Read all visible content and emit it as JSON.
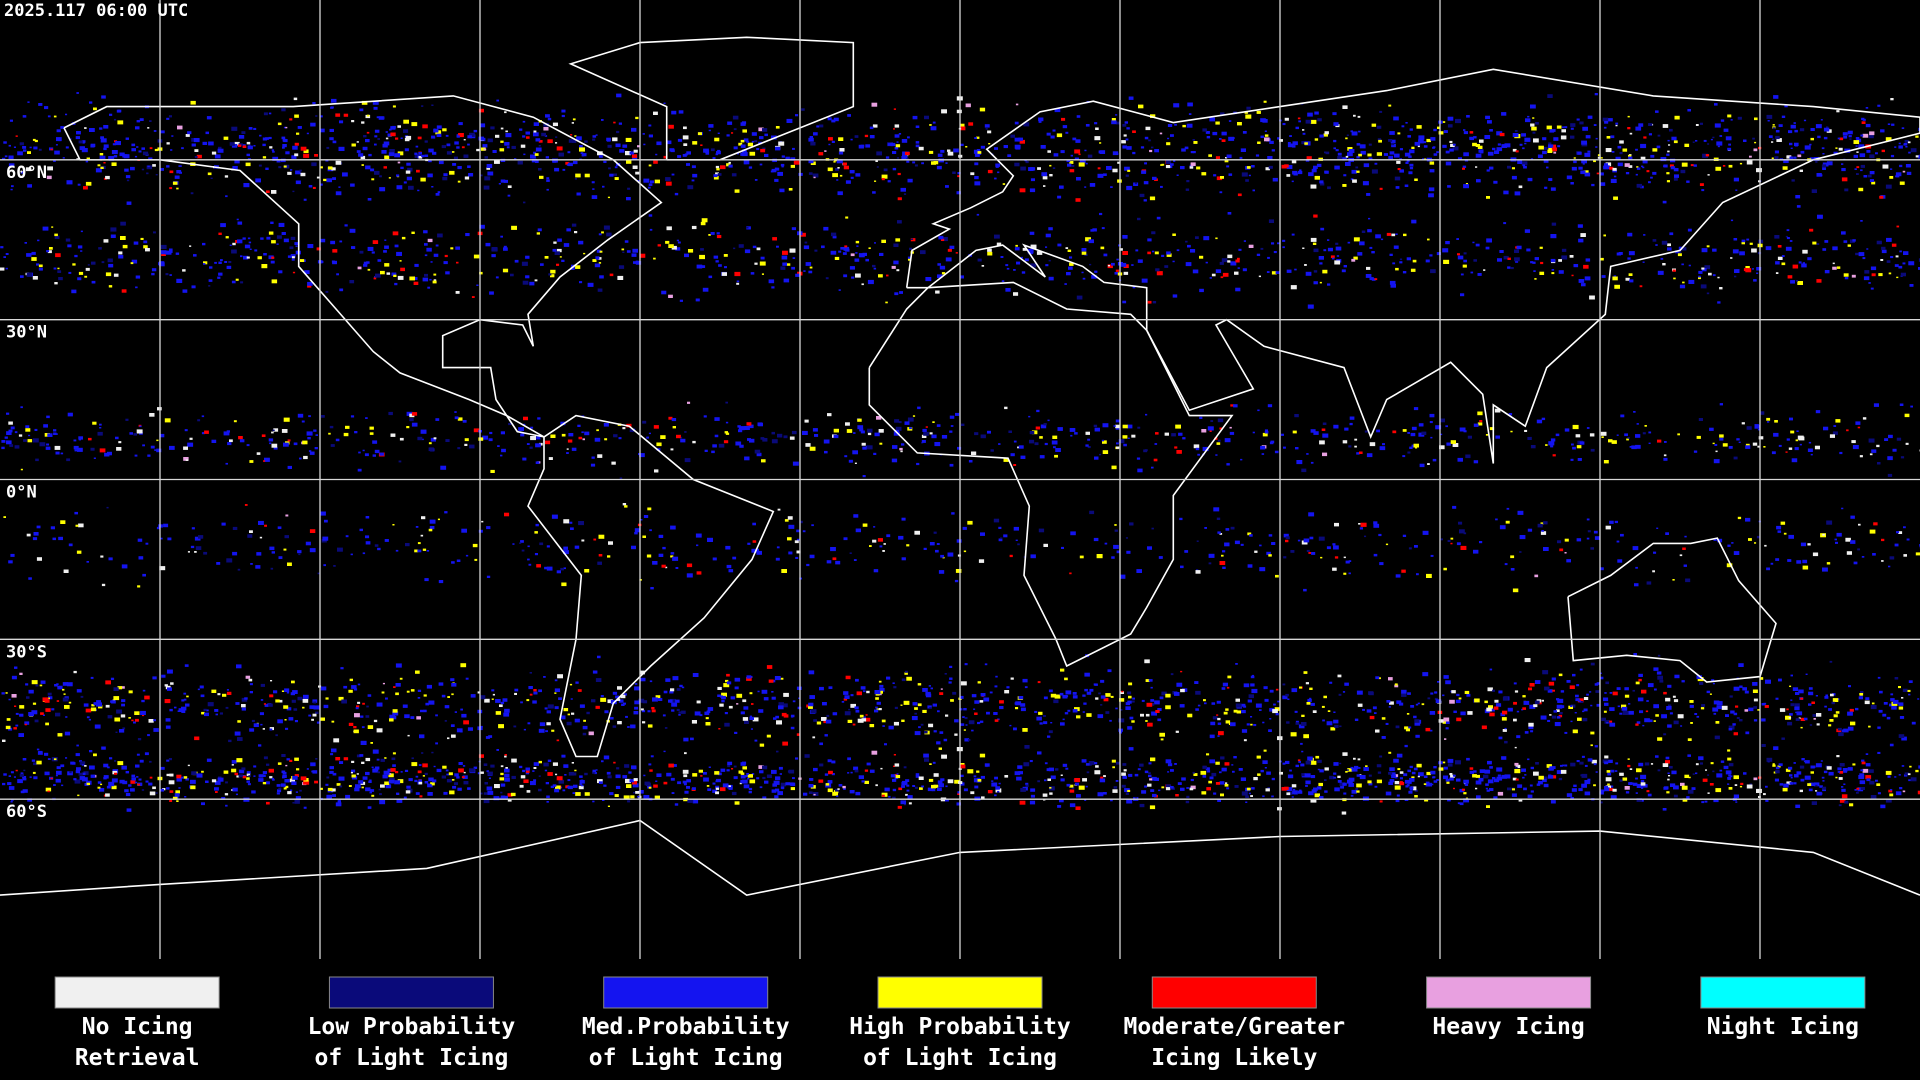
{
  "header": {
    "timestamp": "2025.117 06:00 UTC"
  },
  "latitude_labels": [
    "60°N",
    "30°N",
    "0°N",
    "30°S",
    "60°S"
  ],
  "legend": [
    {
      "label": [
        "No Icing",
        "Retrieval"
      ],
      "color": "#f0f0f0"
    },
    {
      "label": [
        "Low Probability",
        "of Light Icing"
      ],
      "color": "#0a0a7a"
    },
    {
      "label": [
        "Med.Probability",
        "of Light Icing"
      ],
      "color": "#1414f0"
    },
    {
      "label": [
        "High Probability",
        "of Light Icing"
      ],
      "color": "#ffff00"
    },
    {
      "label": [
        "Moderate/Greater",
        "Icing Likely"
      ],
      "color": "#ff0000"
    },
    {
      "label": [
        "Heavy Icing",
        ""
      ],
      "color": "#e8a0e0"
    },
    {
      "label": [
        "Night Icing",
        ""
      ],
      "color": "#00ffff"
    }
  ]
}
